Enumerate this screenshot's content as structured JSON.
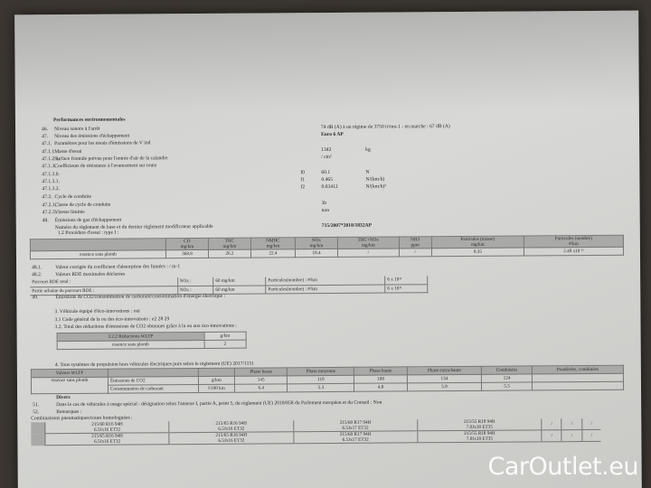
{
  "doc": {
    "title": "Performances environnementales",
    "lines": [
      {
        "n": "46.",
        "label": "Niveau sonore à l'arrêt",
        "value": "74 dB (A)   à un régime de 3750 tr/mn-1 - en marche :   67 dB (A)"
      },
      {
        "n": "47.",
        "label": "Niveau des émissions d'échappement",
        "value": "Euro 6 AP"
      },
      {
        "n": "47.1.",
        "label": "Paramètres pour les essais d'émissions de V ind"
      },
      {
        "n": "47.1.1.",
        "label": "Masse d'essai",
        "value": "1342",
        "unit": "kg"
      },
      {
        "n": "47.1.2.1.",
        "label": "Surface frontale prévue pour l'entrée d'air de la calandre",
        "value": "/ cm²"
      },
      {
        "n": "47.1.3.",
        "label": "Coefficients de résistance à l'avancement sur route"
      },
      {
        "n": "47.1.3.0.",
        "sym": "f0",
        "value": "60.1",
        "unit": "N"
      },
      {
        "n": "47.1.3.1.",
        "sym": "f1",
        "value": "0.465",
        "unit": "N/(km/h)"
      },
      {
        "n": "47.1.3.2.",
        "sym": "f2",
        "value": "0.03412",
        "unit": "N/(km/h)²"
      },
      {
        "n": "47.2.",
        "label": "Cycle de conduite"
      },
      {
        "n": "47.2.1.",
        "label": "Classe de cycle de conduite",
        "value": "3b"
      },
      {
        "n": "47.2.3.",
        "label": "Vitesse limitée",
        "value": "non"
      },
      {
        "n": "48.",
        "label": "Émissions de gaz d'échappement"
      },
      {
        "n": "",
        "label": "Numéro du règlement de base et du dernier règlement modificateur applicable",
        "value": "715/2007*2018/1832AP"
      }
    ],
    "procedure": "1.2 Procédure d'essai : type I :",
    "emissions_table": {
      "headers": [
        [
          "CO",
          "mg/km"
        ],
        [
          "THC",
          "mg/km"
        ],
        [
          "NMHC",
          "mg/km"
        ],
        [
          "NOx",
          "mg/km"
        ],
        [
          "THC+NOx",
          "mg/km"
        ],
        [
          "NH3",
          "ppm"
        ],
        [
          "Particules (masse)",
          "mg/km"
        ],
        [
          "Particules (nombre)",
          "#/km"
        ]
      ],
      "row_label": "essence sans plomb",
      "values": [
        "368.8",
        "26.2",
        "22.4",
        "18.4",
        "/",
        "/",
        "0.35",
        "2.49 x10 ¹¹"
      ]
    },
    "l491": {
      "n": "48.1.",
      "label": "Valeur corrigée du coefficient d'absorption des fumées : / m-1"
    },
    "l482": {
      "n": "48.2.",
      "label": "Valeurs RDE maximales déclarées"
    },
    "rde": [
      {
        "label": "Parcours RDE total :",
        "nox": "NOx :",
        "nox_val": "60 mg/km",
        "pn": "Particules(nombre) : #/km",
        "pn_val": "6 x 10¹¹"
      },
      {
        "label": "Partie urbaine du parcours RDE :",
        "nox": "NOx :",
        "nox_val": "60 mg/km",
        "pn": "Particules(nombre) : #/km",
        "pn_val": "6 x 10¹¹"
      }
    ],
    "l49": {
      "n": "49.",
      "label": "Émissions de CO2/consommation de carburant/consommation d'énergie électrique :"
    },
    "eco": [
      "3. Véhicule équipé d'éco-innovations : oui",
      "3.1 Code général de la ou des éco-innovations : e2 28 29",
      "3.2. Total des réductions d'émissions de CO2 obtenues grâce à la ou aux éco-innovations :"
    ],
    "eco_table": {
      "h1": "3.2.2 Réductions WLTP",
      "h2": "g/km",
      "row": "essence sans plomb",
      "val": "2"
    },
    "wltp_title": "4. Tous systèmes de propulsion hors véhicules électriques purs selon le règlement (UE) 2017/1151",
    "wltp": {
      "corner": "Valeurs WLTP",
      "fuel": "essence sans plomb",
      "headers": [
        "Phase basse",
        "Phase moyenne",
        "Phase haute",
        "Phase extra-haute",
        "Combinées",
        "Pondérées, combinées"
      ],
      "rows": [
        {
          "label": "Émissions de CO2",
          "unit": "g/km",
          "values": [
            "145",
            "119",
            "108",
            "134",
            "124",
            ""
          ]
        },
        {
          "label": "Consommation de carburant",
          "unit": "l/100 km",
          "values": [
            "6.4",
            "5.3",
            "4.8",
            "5.9",
            "5.5",
            ""
          ]
        }
      ]
    },
    "divers": "Divers",
    "l51": {
      "n": "51.",
      "label": "Dans le cas de véhicules à usage spécial : désignation selon l'annexe I, partie A, point 5, du règlement (UE) 2018/858 du Parlement européen et du Conseil : Non"
    },
    "l52": {
      "n": "52.",
      "label": "Remarques :"
    },
    "tyres_title": "Combinaisons pneumatiques/roues homologuées :",
    "tyres": [
      [
        [
          "215/60 R16 94H",
          "6.5Jx16 ET32"
        ],
        [
          "215/65 R16 94H",
          "6.5Jx16 ET32"
        ],
        [
          "215/60 R17 94H",
          "6.5Jx17 ET32"
        ],
        [
          "215/55 R18 94H",
          "7.0Jx18 ET35"
        ],
        [
          "/",
          ""
        ],
        [
          "/",
          ""
        ],
        [
          "/",
          ""
        ]
      ],
      [
        [
          "215/65 R16 94H",
          "6.5Jx16 ET32"
        ],
        [
          "215/65 R16 94H",
          "6.5Jx16 ET32"
        ],
        [
          "215/60 R17 94H",
          "6.5Jx17 ET32"
        ],
        [
          "215/55 R18 94H",
          "7.0Jx18 ET35"
        ],
        [
          "/",
          ""
        ],
        [
          "/",
          ""
        ],
        [
          "/",
          ""
        ]
      ]
    ]
  },
  "watermark": "CarOutlet.eu",
  "colors": {
    "paper": "#d4d4d2",
    "table_header": "#a9a9a7",
    "background": "#3b3631"
  }
}
